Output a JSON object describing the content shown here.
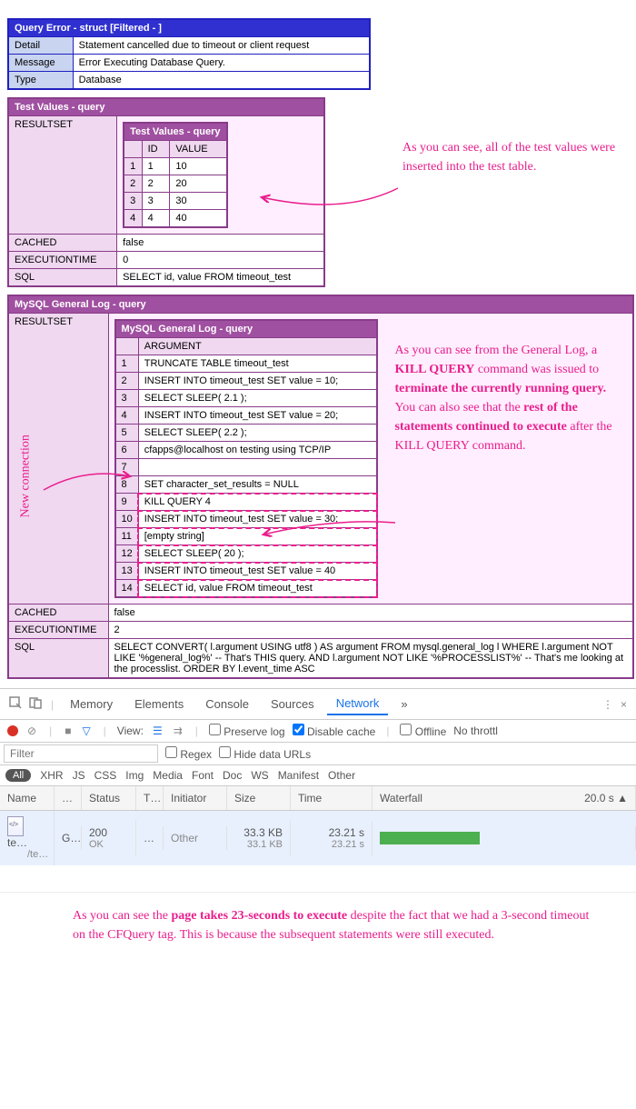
{
  "error": {
    "title": "Query Error - struct [Filtered - ]",
    "rows": [
      {
        "label": "Detail",
        "value": "Statement cancelled due to timeout or client request"
      },
      {
        "label": "Message",
        "value": "Error Executing Database Query."
      },
      {
        "label": "Type",
        "value": "Database"
      }
    ]
  },
  "testValues": {
    "title": "Test Values - query",
    "resultsetLabel": "RESULTSET",
    "innerTitle": "Test Values - query",
    "columns": [
      "ID",
      "VALUE"
    ],
    "rows": [
      [
        "1",
        "1",
        "10"
      ],
      [
        "2",
        "2",
        "20"
      ],
      [
        "3",
        "3",
        "30"
      ],
      [
        "4",
        "4",
        "40"
      ]
    ],
    "cachedLabel": "CACHED",
    "cached": "false",
    "execLabel": "EXECUTIONTIME",
    "exec": "0",
    "sqlLabel": "SQL",
    "sql": "SELECT id, value FROM timeout_test"
  },
  "annotation1": "As you can see, all of the test values were inserted into the test table.",
  "mysqlLog": {
    "title": "MySQL General Log - query",
    "resultsetLabel": "RESULTSET",
    "innerTitle": "MySQL General Log - query",
    "colHeader": "ARGUMENT",
    "rows": [
      "TRUNCATE TABLE timeout_test",
      "INSERT INTO timeout_test SET value = 10;",
      "SELECT SLEEP( 2.1 );",
      "INSERT INTO timeout_test SET value = 20;",
      "SELECT SLEEP( 2.2 );",
      "cfapps@localhost on testing using TCP/IP",
      "",
      "SET character_set_results = NULL",
      "KILL QUERY 4",
      "INSERT INTO timeout_test SET value = 30;",
      "[empty string]",
      "SELECT SLEEP( 20 );",
      "INSERT INTO timeout_test SET value = 40",
      "SELECT id, value FROM timeout_test"
    ],
    "highlightStart": 9,
    "cachedLabel": "CACHED",
    "cached": "false",
    "execLabel": "EXECUTIONTIME",
    "exec": "2",
    "sqlLabel": "SQL",
    "sql": "SELECT CONVERT( l.argument USING utf8 ) AS argument FROM mysql.general_log l WHERE l.argument NOT LIKE '%general_log%' -- That's THIS query. AND l.argument NOT LIKE '%PROCESSLIST%' -- That's me looking at the processlist. ORDER BY l.event_time ASC"
  },
  "annotationNewConn": "New connection",
  "annotation2a": "As you can see from the General Log, a ",
  "annotation2b": "KILL QUERY",
  "annotation2c": " command was issued to ",
  "annotation2d": "terminate the currently running query.",
  "annotation2e": " You can also see that the ",
  "annotation2f": "rest of the statements continued to execute",
  "annotation2g": " after the KILL QUERY command.",
  "devtools": {
    "tabs": [
      "Memory",
      "Elements",
      "Console",
      "Sources",
      "Network"
    ],
    "more": "»",
    "preserveLog": "Preserve log",
    "disableCache": "Disable cache",
    "offline": "Offline",
    "noThrottle": "No throttl",
    "view": "View:",
    "filter": "Filter",
    "regex": "Regex",
    "hideData": "Hide data URLs",
    "types": [
      "XHR",
      "JS",
      "CSS",
      "Img",
      "Media",
      "Font",
      "Doc",
      "WS",
      "Manifest",
      "Other"
    ],
    "all": "All",
    "cols": {
      "name": "Name",
      "dots": "…",
      "status": "Status",
      "t": "T…",
      "initiator": "Initiator",
      "size": "Size",
      "time": "Time",
      "waterfall": "Waterfall",
      "wfval": "20.0",
      "wfunit": "s"
    },
    "row": {
      "name": "te…",
      "name2": "/te…",
      "method": "G…",
      "status": "200",
      "statusText": "OK",
      "type": "…",
      "initiator": "Other",
      "size": "33.3 KB",
      "size2": "33.1 KB",
      "time": "23.21 s",
      "time2": "23.21 s"
    }
  },
  "annotation3a": "As you can see the ",
  "annotation3b": "page takes 23-seconds to execute",
  "annotation3c": " despite the fact that we had a 3-second timeout on the CFQuery tag. This is because the subsequent statements were still executed."
}
